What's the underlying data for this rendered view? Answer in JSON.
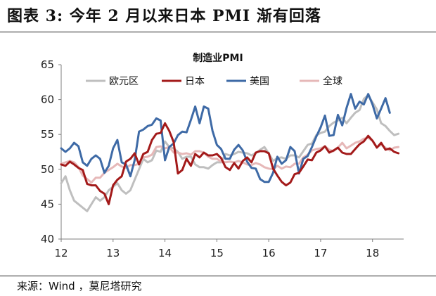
{
  "figure": {
    "title": "图表 3:  今年 2 月以来日本 PMI 渐有回落",
    "source": "来源：Wind ，莫尼塔研究"
  },
  "chart_data": {
    "type": "line",
    "title": "制造业PMI",
    "xlabel": "",
    "ylabel": "",
    "xlim": [
      12.0,
      18.6
    ],
    "ylim": [
      40,
      65
    ],
    "x_ticks": [
      12,
      13,
      14,
      15,
      16,
      17,
      18
    ],
    "x_tick_labels": [
      "12",
      "13",
      "14",
      "15",
      "16",
      "17",
      "18"
    ],
    "y_ticks": [
      40,
      45,
      50,
      55,
      60,
      65
    ],
    "y_tick_labels": [
      "40",
      "45",
      "50",
      "55",
      "60",
      "65"
    ],
    "grid": false,
    "legend_position": "top",
    "x_start": 12.0,
    "x_step": 0.0833333,
    "series": [
      {
        "name": "欧元区",
        "color": "#bfbfbf",
        "values": [
          48.0,
          49.0,
          47.0,
          45.5,
          45.0,
          44.5,
          44.0,
          45.0,
          46.0,
          45.5,
          46.0,
          47.0,
          47.5,
          48.0,
          47.0,
          46.5,
          47.0,
          48.5,
          50.0,
          51.5,
          51.0,
          51.3,
          52.7,
          52.5,
          54.0,
          53.2,
          53.0,
          52.5,
          51.5,
          51.8,
          51.8,
          50.7,
          50.3,
          50.3,
          50.1,
          50.6,
          51.0,
          51.0,
          52.2,
          52.0,
          52.2,
          52.5,
          52.4,
          52.3,
          52.0,
          52.3,
          52.8,
          53.2,
          52.3,
          51.2,
          51.6,
          51.7,
          51.5,
          52.0,
          52.0,
          51.7,
          52.6,
          53.5,
          53.7,
          54.9,
          55.2,
          55.4,
          56.2,
          56.7,
          57.0,
          57.4,
          56.6,
          57.4,
          58.1,
          58.5,
          60.1,
          60.6,
          59.6,
          58.6,
          56.6,
          56.2,
          55.5,
          54.9,
          55.1
        ]
      },
      {
        "name": "日本",
        "color": "#a31a1a",
        "values": [
          50.7,
          50.5,
          51.1,
          50.7,
          50.2,
          49.9,
          47.9,
          47.7,
          47.7,
          46.9,
          46.5,
          45.0,
          47.7,
          48.5,
          49.0,
          51.1,
          51.5,
          52.3,
          50.7,
          52.2,
          52.5,
          54.2,
          55.1,
          55.2,
          56.6,
          55.5,
          53.9,
          49.4,
          49.9,
          51.5,
          50.5,
          52.2,
          51.7,
          52.4,
          52.0,
          52.0,
          52.2,
          51.6,
          50.3,
          49.9,
          50.9,
          50.1,
          51.2,
          51.7,
          51.0,
          52.4,
          52.6,
          52.6,
          52.3,
          50.1,
          49.1,
          48.2,
          47.7,
          48.1,
          49.3,
          49.5,
          50.4,
          51.4,
          51.3,
          52.4,
          52.7,
          53.3,
          52.4,
          52.7,
          53.1,
          52.4,
          52.2,
          52.2,
          52.9,
          53.6,
          54.0,
          54.8,
          54.1,
          53.1,
          53.8,
          52.8,
          53.0,
          52.5,
          52.3
        ]
      },
      {
        "name": "美国",
        "color": "#3e6aa6",
        "values": [
          53.0,
          52.5,
          53.0,
          53.8,
          53.3,
          51.0,
          50.5,
          51.5,
          52.0,
          51.5,
          49.5,
          50.5,
          53.0,
          54.2,
          51.0,
          50.7,
          49.0,
          51.3,
          55.4,
          55.7,
          56.2,
          56.4,
          57.3,
          57.0,
          51.3,
          53.2,
          53.7,
          54.9,
          55.4,
          55.3,
          57.1,
          59.0,
          56.6,
          59.0,
          58.7,
          55.5,
          53.5,
          52.9,
          51.5,
          51.5,
          52.8,
          53.5,
          52.7,
          51.1,
          50.2,
          50.1,
          48.6,
          48.2,
          48.2,
          49.5,
          51.8,
          50.8,
          51.3,
          53.2,
          52.6,
          49.4,
          51.5,
          51.9,
          53.2,
          54.7,
          56.0,
          57.7,
          54.8,
          54.9,
          57.8,
          56.3,
          58.8,
          60.8,
          58.7,
          59.7,
          59.3,
          60.8,
          59.3,
          57.3,
          58.7,
          60.2,
          58.1
        ]
      },
      {
        "name": "全球",
        "color": "#e6b8b8",
        "values": [
          50.8,
          51.0,
          51.2,
          51.0,
          50.3,
          49.1,
          48.6,
          48.1,
          48.8,
          48.8,
          49.5,
          49.9,
          50.3,
          50.8,
          50.4,
          50.2,
          50.6,
          50.6,
          50.8,
          51.7,
          51.8,
          52.1,
          53.2,
          53.3,
          53.0,
          53.2,
          52.4,
          52.4,
          52.2,
          52.3,
          52.1,
          52.6,
          52.6,
          52.4,
          51.8,
          51.5,
          51.5,
          51.1,
          51.0,
          51.1,
          51.0,
          51.2,
          51.0,
          50.7,
          50.6,
          50.9,
          50.7,
          50.3,
          50.1,
          50.0,
          50.5,
          50.1,
          50.4,
          50.3,
          50.8,
          50.8,
          51.7,
          52.1,
          52.7,
          52.9,
          53.0,
          53.3,
          52.8,
          52.6,
          53.1,
          53.8,
          53.0,
          53.4,
          53.8,
          54.0,
          54.4,
          54.5,
          54.1,
          53.2,
          53.5,
          53.1,
          52.7,
          53.1,
          53.2
        ]
      }
    ]
  }
}
